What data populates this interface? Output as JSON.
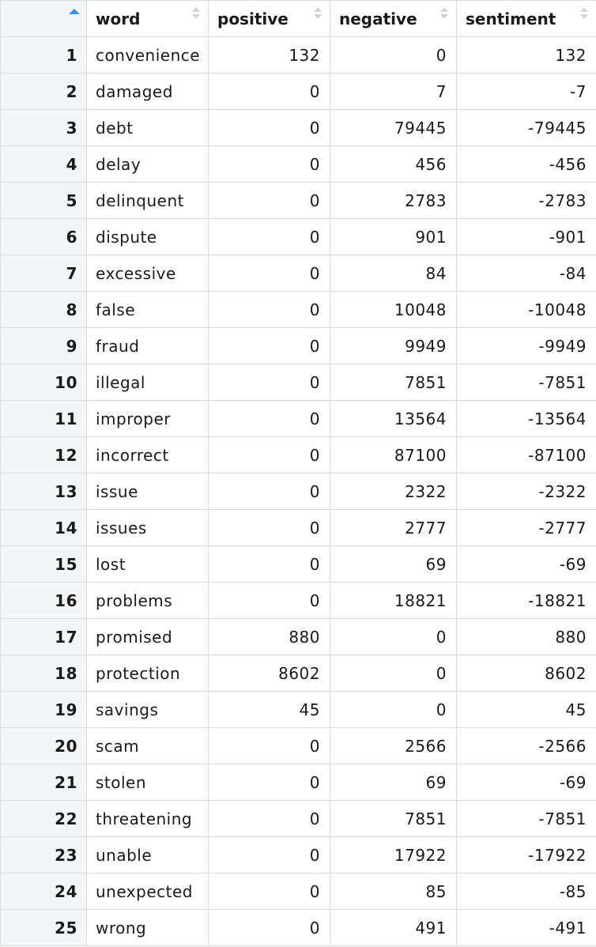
{
  "table": {
    "columns": [
      "word",
      "positive",
      "negative",
      "sentiment"
    ],
    "sort": {
      "column_index": 0,
      "direction": "ascending",
      "indicator_color": "#3d8fe0"
    },
    "rows": [
      {
        "idx": "1",
        "word": "convenience",
        "positive": "132",
        "negative": "0",
        "sentiment": "132"
      },
      {
        "idx": "2",
        "word": "damaged",
        "positive": "0",
        "negative": "7",
        "sentiment": "-7"
      },
      {
        "idx": "3",
        "word": "debt",
        "positive": "0",
        "negative": "79445",
        "sentiment": "-79445"
      },
      {
        "idx": "4",
        "word": "delay",
        "positive": "0",
        "negative": "456",
        "sentiment": "-456"
      },
      {
        "idx": "5",
        "word": "delinquent",
        "positive": "0",
        "negative": "2783",
        "sentiment": "-2783"
      },
      {
        "idx": "6",
        "word": "dispute",
        "positive": "0",
        "negative": "901",
        "sentiment": "-901"
      },
      {
        "idx": "7",
        "word": "excessive",
        "positive": "0",
        "negative": "84",
        "sentiment": "-84"
      },
      {
        "idx": "8",
        "word": "false",
        "positive": "0",
        "negative": "10048",
        "sentiment": "-10048"
      },
      {
        "idx": "9",
        "word": "fraud",
        "positive": "0",
        "negative": "9949",
        "sentiment": "-9949"
      },
      {
        "idx": "10",
        "word": "illegal",
        "positive": "0",
        "negative": "7851",
        "sentiment": "-7851"
      },
      {
        "idx": "11",
        "word": "improper",
        "positive": "0",
        "negative": "13564",
        "sentiment": "-13564"
      },
      {
        "idx": "12",
        "word": "incorrect",
        "positive": "0",
        "negative": "87100",
        "sentiment": "-87100"
      },
      {
        "idx": "13",
        "word": "issue",
        "positive": "0",
        "negative": "2322",
        "sentiment": "-2322"
      },
      {
        "idx": "14",
        "word": "issues",
        "positive": "0",
        "negative": "2777",
        "sentiment": "-2777"
      },
      {
        "idx": "15",
        "word": "lost",
        "positive": "0",
        "negative": "69",
        "sentiment": "-69"
      },
      {
        "idx": "16",
        "word": "problems",
        "positive": "0",
        "negative": "18821",
        "sentiment": "-18821"
      },
      {
        "idx": "17",
        "word": "promised",
        "positive": "880",
        "negative": "0",
        "sentiment": "880"
      },
      {
        "idx": "18",
        "word": "protection",
        "positive": "8602",
        "negative": "0",
        "sentiment": "8602"
      },
      {
        "idx": "19",
        "word": "savings",
        "positive": "45",
        "negative": "0",
        "sentiment": "45"
      },
      {
        "idx": "20",
        "word": "scam",
        "positive": "0",
        "negative": "2566",
        "sentiment": "-2566"
      },
      {
        "idx": "21",
        "word": "stolen",
        "positive": "0",
        "negative": "69",
        "sentiment": "-69"
      },
      {
        "idx": "22",
        "word": "threatening",
        "positive": "0",
        "negative": "7851",
        "sentiment": "-7851"
      },
      {
        "idx": "23",
        "word": "unable",
        "positive": "0",
        "negative": "17922",
        "sentiment": "-17922"
      },
      {
        "idx": "24",
        "word": "unexpected",
        "positive": "0",
        "negative": "85",
        "sentiment": "-85"
      },
      {
        "idx": "25",
        "word": "wrong",
        "positive": "0",
        "negative": "491",
        "sentiment": "-491"
      }
    ]
  }
}
